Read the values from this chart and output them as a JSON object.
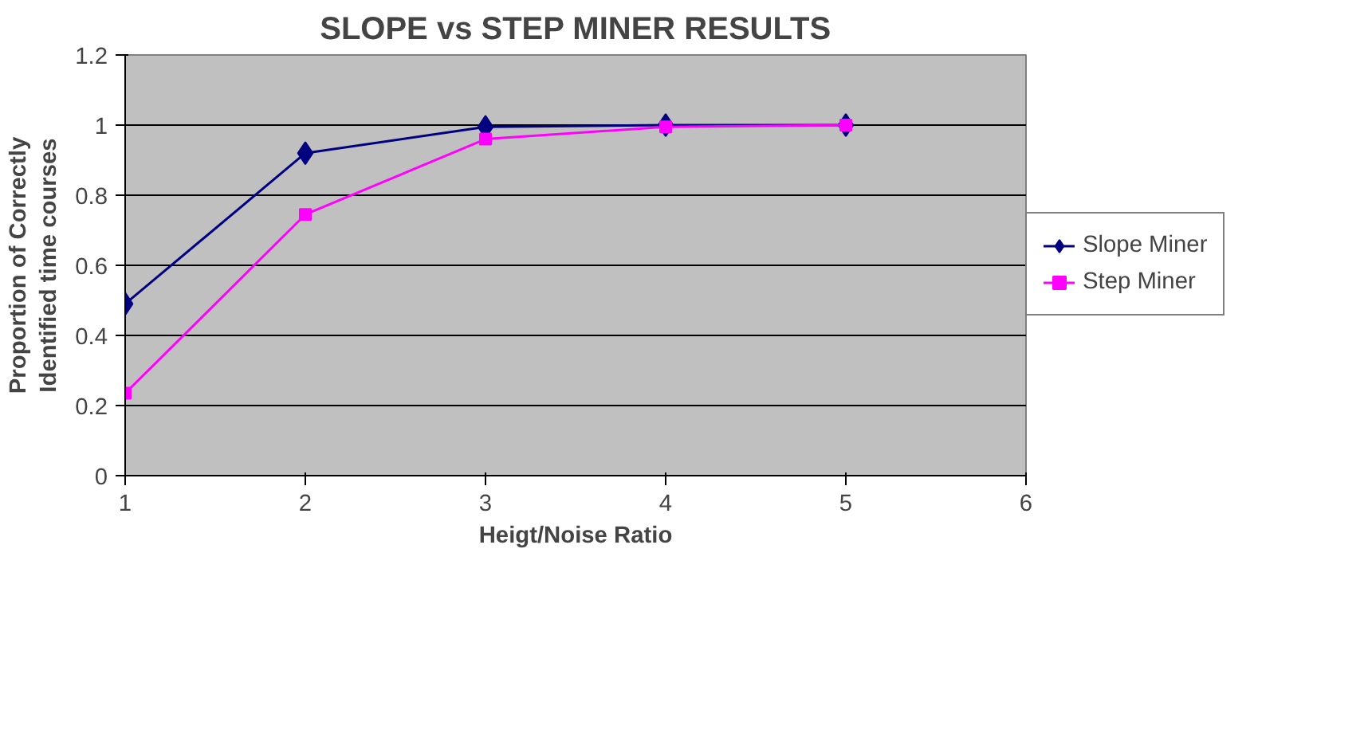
{
  "chart_data": {
    "type": "line",
    "title": "SLOPE vs STEP MINER RESULTS",
    "xlabel": "Heigt/Noise Ratio",
    "ylabel": "Proportion of Correctly\nIdentified time courses",
    "x": [
      1,
      2,
      3,
      4,
      5
    ],
    "series": [
      {
        "name": "Slope Miner",
        "color": "#000080",
        "marker": "diamond",
        "values": [
          0.49,
          0.92,
          0.995,
          1.0,
          1.0
        ]
      },
      {
        "name": "Step Miner",
        "color": "#ff00ff",
        "marker": "square",
        "values": [
          0.235,
          0.745,
          0.96,
          0.995,
          1.0
        ]
      }
    ],
    "xlim": [
      1,
      6
    ],
    "xticks": [
      1,
      2,
      3,
      4,
      5,
      6
    ],
    "ylim": [
      0,
      1.2
    ],
    "yticks": [
      0,
      0.2,
      0.4,
      0.6,
      0.8,
      1,
      1.2
    ],
    "grid": "y",
    "legend": "right"
  }
}
